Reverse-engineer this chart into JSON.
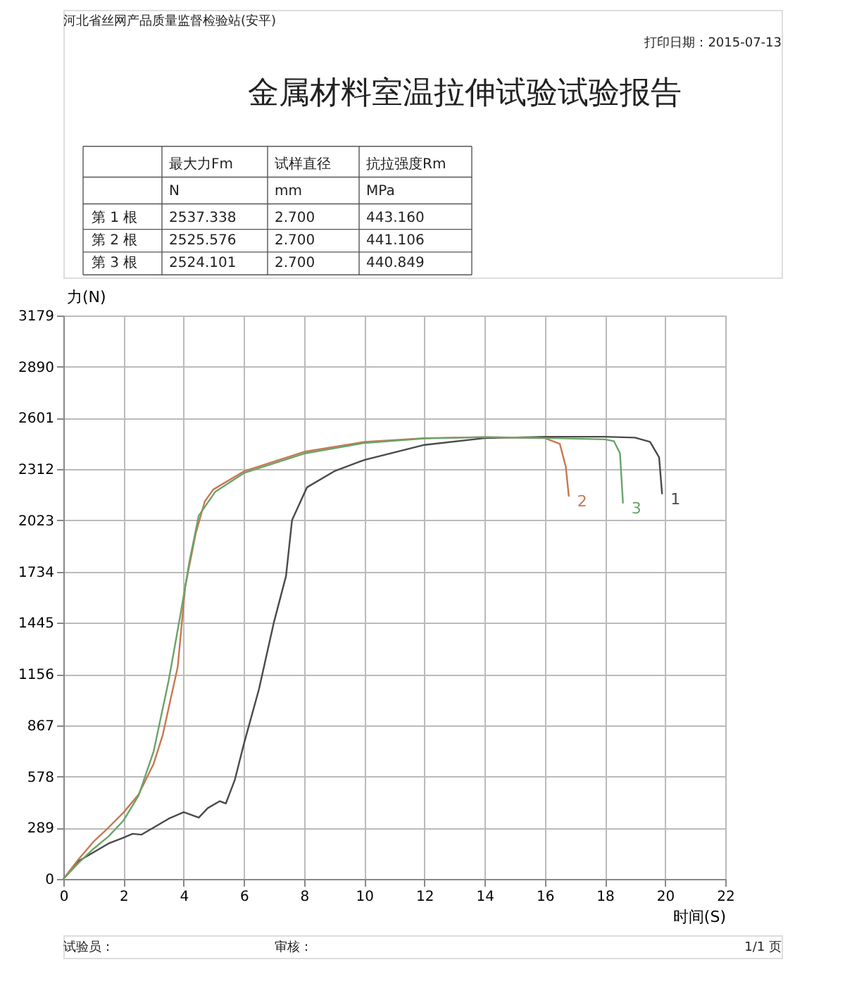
{
  "chart_data": {
    "type": "line",
    "title": "金属材料室温拉伸试验试验报告",
    "xlabel": "时间(S)",
    "ylabel": "力(N)",
    "annotations": [
      "河北省丝网产品质量监督检验站(安平)",
      "打印日期：2015-07-13",
      "最大力Fm",
      "试样直径",
      "抗拉强度Rm",
      "N",
      "mm",
      "MPa",
      "第 1 根",
      "2537.338",
      "2.700",
      "443.160",
      "第 2 根",
      "2525.576",
      "2.700",
      "441.106",
      "第 3 根",
      "2524.101",
      "2.700",
      "440.849",
      "试验员：",
      "审核：",
      "1/1 页"
    ],
    "xlim": [
      0,
      22
    ],
    "xticks": [
      0,
      2,
      4,
      6,
      8,
      10,
      12,
      14,
      16,
      18,
      20,
      22
    ],
    "ylim": [
      0,
      3179
    ],
    "yticks": [
      0,
      289,
      578,
      867,
      1156,
      1445,
      1734,
      2023,
      2312,
      2601,
      2890,
      3179
    ],
    "grid": true,
    "line_style": "solid",
    "series": [
      {
        "name": "1",
        "color": "#4a4a4a",
        "x": [
          0,
          0.5,
          1,
          1.5,
          2,
          2.3,
          2.6,
          3,
          3.5,
          4,
          4.5,
          4.8,
          5.2,
          5.4,
          5.7,
          6,
          6.5,
          7,
          7.4,
          7.6,
          8.1,
          9,
          10,
          12,
          14,
          16,
          18,
          19,
          19.5,
          19.8,
          19.9
        ],
        "values": [
          0,
          100,
          150,
          200,
          233,
          255,
          250,
          290,
          340,
          377,
          346,
          400,
          439,
          426,
          560,
          762,
          1070,
          1450,
          1709,
          2025,
          2210,
          2300,
          2364,
          2449,
          2487,
          2495,
          2495,
          2490,
          2466,
          2379,
          2171
        ]
      },
      {
        "name": "2",
        "color": "#c87850",
        "x": [
          0,
          0.5,
          1,
          1.5,
          2,
          2.5,
          3,
          3.3,
          3.8,
          4.05,
          4.4,
          4.7,
          4.98,
          6,
          8,
          10,
          12,
          14,
          16,
          16.5,
          16.7,
          16.8
        ],
        "values": [
          0,
          110,
          210,
          290,
          375,
          477,
          650,
          811,
          1196,
          1650,
          1950,
          2130,
          2197,
          2300,
          2410,
          2466,
          2487,
          2493,
          2487,
          2455,
          2325,
          2157
        ]
      },
      {
        "name": "3",
        "color": "#6aa36a",
        "x": [
          0,
          0.5,
          1,
          1.5,
          2,
          2.5,
          3,
          3.5,
          3.9,
          4.2,
          4.5,
          5.05,
          6,
          8,
          10,
          12,
          14,
          16,
          18,
          18.3,
          18.5,
          18.6
        ],
        "values": [
          0,
          90,
          170,
          240,
          330,
          470,
          720,
          1120,
          1500,
          1800,
          2050,
          2185,
          2290,
          2400,
          2460,
          2485,
          2493,
          2488,
          2480,
          2470,
          2402,
          2119
        ]
      }
    ]
  }
}
